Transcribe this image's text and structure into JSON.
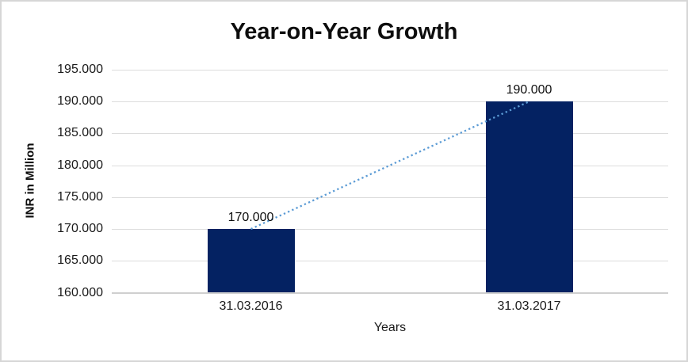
{
  "chart_data": {
    "type": "bar",
    "title": "Year-on-Year Growth",
    "xlabel": "Years",
    "ylabel": "INR in Million",
    "categories": [
      "31.03.2016",
      "31.03.2017"
    ],
    "values": [
      170000,
      190000
    ],
    "value_labels": [
      "170.000",
      "190.000"
    ],
    "ylim": [
      160000,
      195000
    ],
    "yticks": [
      160000,
      165000,
      170000,
      175000,
      180000,
      185000,
      190000,
      195000
    ],
    "ytick_labels": [
      "160.000",
      "165.000",
      "170.000",
      "175.000",
      "180.000",
      "185.000",
      "190.000",
      "195.000"
    ],
    "grid": "horizontal",
    "legend": "none",
    "colors": {
      "bar": "#042262",
      "trendline": "#5B9BD5",
      "gridline": "#dcdcdc",
      "axisline": "#cfcfcf",
      "frame_border": "#d6d6d6"
    },
    "trendline": {
      "style": "dotted",
      "from_value": 170000,
      "to_value": 190000
    }
  }
}
